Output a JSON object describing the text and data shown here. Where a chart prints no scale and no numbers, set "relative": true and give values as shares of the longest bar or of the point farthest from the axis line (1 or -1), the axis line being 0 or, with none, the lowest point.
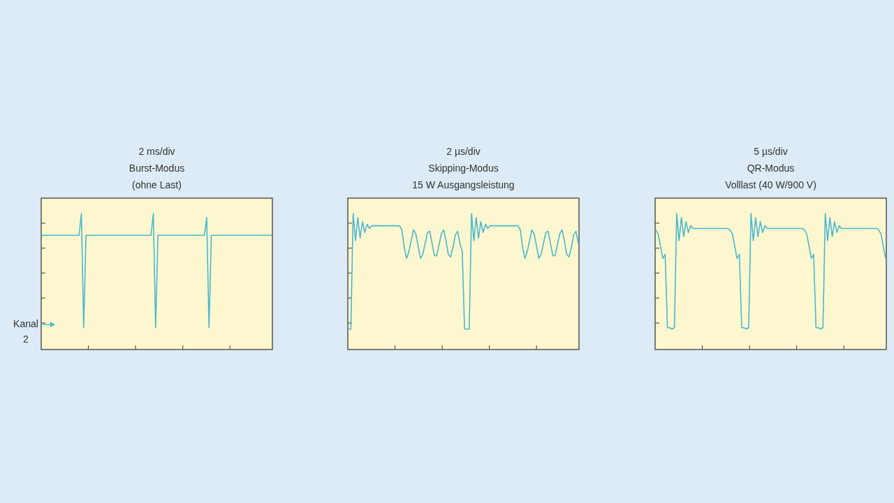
{
  "chart_data": [
    {
      "type": "line",
      "title": "2 ms/div",
      "subtitle": "Burst-Modus\n(ohne Last)",
      "relative": true,
      "annotations": [
        "Kanal 2"
      ],
      "categories": [
        null,
        null,
        null,
        null,
        null,
        null,
        null,
        null,
        null,
        null,
        null,
        null,
        null,
        null,
        null,
        null,
        null,
        null,
        null,
        null,
        null,
        null,
        null,
        null,
        null,
        null,
        null,
        null,
        null,
        null,
        null,
        null,
        null,
        null,
        null,
        null,
        null,
        null,
        null,
        null,
        null,
        null,
        null,
        null,
        null,
        null,
        null,
        null,
        null,
        null,
        null,
        null,
        null,
        null,
        null,
        null,
        null,
        null,
        null,
        null,
        null,
        null,
        null,
        null,
        null,
        null,
        null,
        null,
        null,
        null,
        null,
        null,
        null,
        null,
        null,
        null,
        null,
        null,
        null,
        null,
        null,
        null,
        null,
        null,
        null,
        null,
        null,
        null,
        null,
        null,
        null,
        null,
        null,
        null,
        null,
        null,
        null,
        null,
        null,
        null
      ],
      "series": [
        {
          "color": "#4ab8cf",
          "values": [
            0.84,
            0.84,
            0.84,
            0.84,
            0.84,
            0.84,
            0.84,
            0.84,
            0.84,
            0.84,
            0.84,
            0.84,
            0.84,
            0.84,
            0.84,
            0.84,
            0.84,
            1.0,
            0.16,
            0.84,
            0.84,
            0.84,
            0.84,
            0.84,
            0.84,
            0.84,
            0.84,
            0.84,
            0.84,
            0.84,
            0.84,
            0.84,
            0.84,
            0.84,
            0.84,
            0.84,
            0.84,
            0.84,
            0.84,
            0.84,
            0.84,
            0.84,
            0.84,
            0.84,
            0.84,
            0.84,
            0.84,
            0.84,
            1.0,
            0.16,
            0.84,
            0.84,
            0.84,
            0.84,
            0.84,
            0.84,
            0.84,
            0.84,
            0.84,
            0.84,
            0.84,
            0.84,
            0.84,
            0.84,
            0.84,
            0.84,
            0.84,
            0.84,
            0.84,
            0.84,
            0.84,
            0.97,
            0.16,
            0.84,
            0.84,
            0.84,
            0.84,
            0.84,
            0.84,
            0.84,
            0.84,
            0.84,
            0.84,
            0.84,
            0.84,
            0.84,
            0.84,
            0.84,
            0.84,
            0.84,
            0.84,
            0.84,
            0.84,
            0.84,
            0.84,
            0.84,
            0.84,
            0.84,
            0.84,
            0.84
          ]
        }
      ]
    },
    {
      "type": "line",
      "title": "2 µs/div",
      "subtitle": "Skipping-Modus\n15 W Ausgangsleistung",
      "relative": true,
      "categories": [
        null,
        null,
        null,
        null,
        null,
        null,
        null,
        null,
        null,
        null,
        null,
        null,
        null,
        null,
        null,
        null,
        null,
        null,
        null,
        null,
        null,
        null,
        null,
        null,
        null,
        null,
        null,
        null,
        null,
        null,
        null,
        null,
        null,
        null,
        null,
        null,
        null,
        null,
        null,
        null,
        null,
        null,
        null,
        null,
        null,
        null,
        null,
        null,
        null,
        null,
        null,
        null,
        null,
        null,
        null,
        null,
        null,
        null,
        null,
        null,
        null,
        null,
        null,
        null,
        null,
        null,
        null,
        null,
        null,
        null,
        null,
        null,
        null,
        null,
        null,
        null,
        null,
        null,
        null,
        null,
        null,
        null,
        null,
        null,
        null,
        null,
        null,
        null,
        null,
        null,
        null,
        null,
        null,
        null,
        null,
        null,
        null,
        null,
        null,
        null
      ],
      "series": [
        {
          "color": "#4ab8cf",
          "values": [
            0.15,
            0.15,
            1.0,
            0.8,
            0.97,
            0.82,
            0.94,
            0.86,
            0.92,
            0.89,
            0.91,
            0.91,
            0.91,
            0.91,
            0.91,
            0.91,
            0.91,
            0.91,
            0.91,
            0.91,
            0.91,
            0.91,
            0.91,
            0.88,
            0.75,
            0.67,
            0.72,
            0.8,
            0.88,
            0.85,
            0.76,
            0.67,
            0.7,
            0.78,
            0.86,
            0.87,
            0.78,
            0.69,
            0.69,
            0.77,
            0.85,
            0.88,
            0.8,
            0.7,
            0.68,
            0.75,
            0.84,
            0.87,
            0.78,
            0.72,
            0.15,
            0.15,
            0.15,
            1.0,
            0.8,
            0.97,
            0.82,
            0.94,
            0.86,
            0.92,
            0.89,
            0.91,
            0.91,
            0.91,
            0.91,
            0.91,
            0.91,
            0.91,
            0.91,
            0.91,
            0.91,
            0.91,
            0.91,
            0.91,
            0.88,
            0.75,
            0.67,
            0.72,
            0.8,
            0.88,
            0.85,
            0.76,
            0.67,
            0.7,
            0.78,
            0.86,
            0.87,
            0.78,
            0.69,
            0.69,
            0.77,
            0.85,
            0.88,
            0.8,
            0.7,
            0.68,
            0.75,
            0.84,
            0.87,
            0.78
          ]
        }
      ]
    },
    {
      "type": "line",
      "title": "5 µs/div",
      "subtitle": "QR-Modus\nVolllast (40 W/900 V)",
      "relative": true,
      "categories": [
        null,
        null,
        null,
        null,
        null,
        null,
        null,
        null,
        null,
        null,
        null,
        null,
        null,
        null,
        null,
        null,
        null,
        null,
        null,
        null,
        null,
        null,
        null,
        null,
        null,
        null,
        null,
        null,
        null,
        null,
        null,
        null,
        null,
        null,
        null,
        null,
        null,
        null,
        null,
        null,
        null,
        null,
        null,
        null,
        null,
        null,
        null,
        null,
        null,
        null,
        null,
        null,
        null,
        null,
        null,
        null,
        null,
        null,
        null,
        null,
        null,
        null,
        null,
        null,
        null,
        null,
        null,
        null,
        null,
        null,
        null,
        null,
        null,
        null,
        null,
        null,
        null,
        null,
        null,
        null,
        null,
        null,
        null,
        null,
        null,
        null,
        null,
        null,
        null,
        null,
        null,
        null,
        null,
        null,
        null,
        null,
        null,
        null,
        null,
        null
      ],
      "series": [
        {
          "color": "#4ab8cf",
          "values": [
            0.88,
            0.85,
            0.76,
            0.67,
            0.7,
            0.16,
            0.16,
            0.15,
            0.16,
            1.0,
            0.8,
            0.97,
            0.83,
            0.94,
            0.86,
            0.91,
            0.89,
            0.89,
            0.89,
            0.89,
            0.89,
            0.89,
            0.89,
            0.89,
            0.89,
            0.89,
            0.89,
            0.89,
            0.89,
            0.89,
            0.89,
            0.89,
            0.88,
            0.85,
            0.76,
            0.67,
            0.7,
            0.16,
            0.16,
            0.15,
            0.16,
            1.0,
            0.8,
            0.97,
            0.83,
            0.94,
            0.86,
            0.91,
            0.89,
            0.89,
            0.89,
            0.89,
            0.89,
            0.89,
            0.89,
            0.89,
            0.89,
            0.89,
            0.89,
            0.89,
            0.89,
            0.89,
            0.89,
            0.89,
            0.88,
            0.85,
            0.76,
            0.67,
            0.7,
            0.16,
            0.16,
            0.15,
            0.16,
            1.0,
            0.8,
            0.97,
            0.83,
            0.94,
            0.86,
            0.91,
            0.89,
            0.89,
            0.89,
            0.89,
            0.89,
            0.89,
            0.89,
            0.89,
            0.89,
            0.89,
            0.89,
            0.89,
            0.89,
            0.89,
            0.89,
            0.89,
            0.88,
            0.85,
            0.76,
            0.67
          ]
        }
      ]
    }
  ]
}
